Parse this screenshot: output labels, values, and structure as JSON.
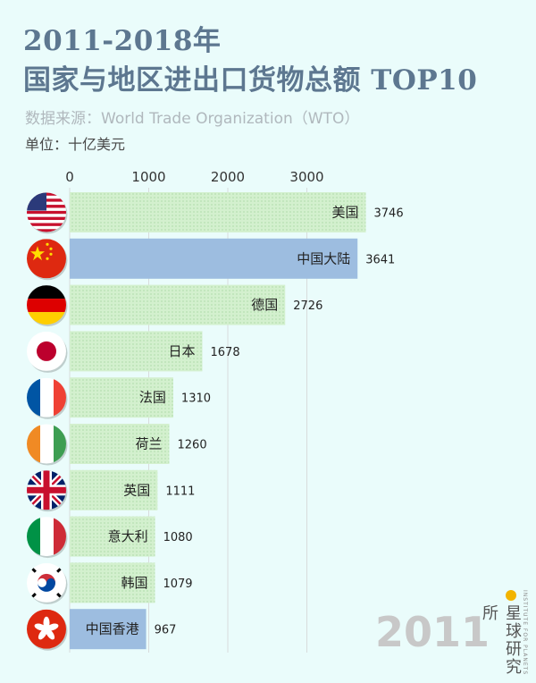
{
  "header": {
    "title_line1": "2011-2018年",
    "title_line2": "国家与地区进出口货物总额 TOP10",
    "source": "数据来源：World Trade Organization（WTO）",
    "unit": "单位：十亿美元"
  },
  "chart_data": {
    "type": "bar",
    "orientation": "horizontal",
    "year": "2011",
    "xlim": [
      0,
      4000
    ],
    "ticks": [
      0,
      1000,
      2000,
      3000
    ],
    "categories": [
      "美国",
      "中国大陆",
      "德国",
      "日本",
      "法国",
      "荷兰",
      "英国",
      "意大利",
      "韩国",
      "中国香港"
    ],
    "values": [
      3746,
      3641,
      2726,
      1678,
      1310,
      1260,
      1111,
      1080,
      1079,
      967
    ],
    "highlight": [
      "中国大陆",
      "中国香港"
    ],
    "flags": [
      "us-flag-icon",
      "china-flag-icon",
      "germany-flag-icon",
      "japan-flag-icon",
      "france-flag-icon",
      "netherlands-flag-icon",
      "uk-flag-icon",
      "italy-flag-icon",
      "korea-flag-icon",
      "hongkong-flag-icon"
    ]
  },
  "colors": {
    "bar_default": "#cdedc9",
    "bar_highlight": "#9dbde0",
    "title": "#5d7790",
    "background": "#eafcfb"
  },
  "brand": {
    "name": "星球研究所",
    "sub": "INSTITUTE FOR PLANETS"
  }
}
